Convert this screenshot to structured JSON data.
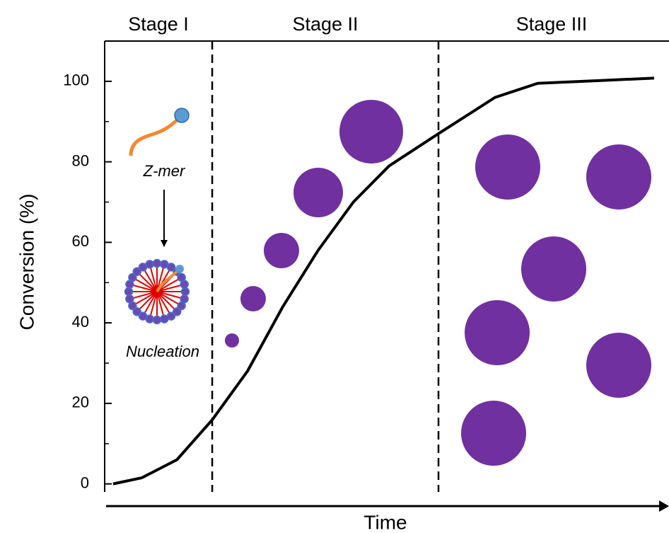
{
  "chart_data": {
    "type": "line",
    "y_label": "Conversion (%)",
    "x_label": "Time",
    "stage_labels": [
      "Stage I",
      "Stage II",
      "Stage III"
    ],
    "stage_boundaries": [
      19.2,
      59.6
    ],
    "annotations": [
      "Z-mer",
      "Nucleation"
    ],
    "x": [
      1.5,
      6.6,
      12.9,
      19.2,
      25.5,
      31.8,
      38.1,
      44.4,
      50.8,
      59.6,
      69.7,
      77.3,
      88.6,
      98.1
    ],
    "series": [
      {
        "color": "#000000",
        "values": [
          0,
          1.5,
          6,
          15.9,
          28,
          44,
          58,
          70,
          79,
          87,
          96,
          99.5,
          100.2,
          100.8
        ]
      }
    ],
    "xlim": [
      0,
      100
    ],
    "ylim": [
      -2,
      110
    ],
    "yticks": [
      0,
      20,
      40,
      60,
      80,
      100
    ],
    "particle_color": "#7030a0"
  }
}
